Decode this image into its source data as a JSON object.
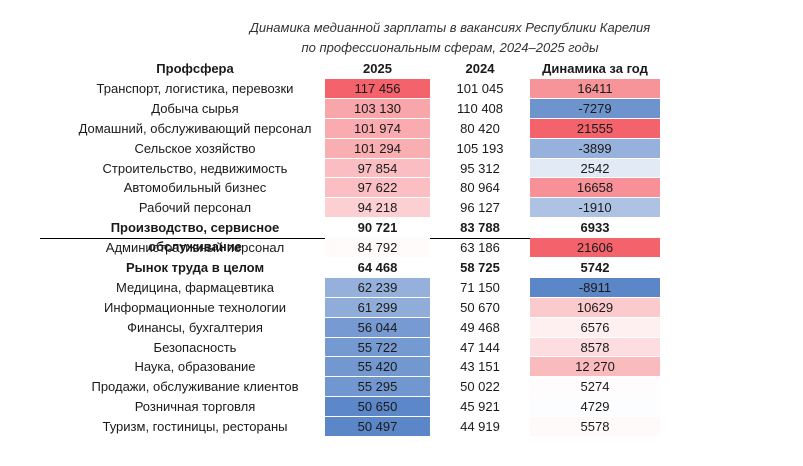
{
  "title": {
    "line1": "Динамика медианной зарплаты в вакансиях Республики Карелия",
    "line2": "по профессиональным сферам, 2024–2025 годы"
  },
  "headers": {
    "prof": "Профсфера",
    "y2025": "2025",
    "y2024": "2024",
    "dyn": "Динамика за год"
  },
  "chart_data": {
    "type": "table",
    "columns": [
      "Профсфера",
      "2025",
      "2024",
      "Динамика за год"
    ],
    "rows": [
      {
        "name": "Транспорт, логистика, перевозки",
        "v2025": "117 456",
        "v2024": "101 045",
        "dyn": "16411",
        "n2025": 117456,
        "ndyn": 16411
      },
      {
        "name": "Добыча сырья",
        "v2025": "103 130",
        "v2024": "110 408",
        "dyn": "-7279",
        "n2025": 103130,
        "ndyn": -7279
      },
      {
        "name": "Домашний, обслуживающий персонал",
        "v2025": "101 974",
        "v2024": "80 420",
        "dyn": "21555",
        "n2025": 101974,
        "ndyn": 21555
      },
      {
        "name": "Сельское хозяйство",
        "v2025": "101 294",
        "v2024": "105 193",
        "dyn": "-3899",
        "n2025": 101294,
        "ndyn": -3899
      },
      {
        "name": "Строительство, недвижимость",
        "v2025": "97 854",
        "v2024": "95 312",
        "dyn": "2542",
        "n2025": 97854,
        "ndyn": 2542
      },
      {
        "name": "Автомобильный бизнес",
        "v2025": "97 622",
        "v2024": "80 964",
        "dyn": "16658",
        "n2025": 97622,
        "ndyn": 16658
      },
      {
        "name": "Рабочий персонал",
        "v2025": "94 218",
        "v2024": "96 127",
        "dyn": "-1910",
        "n2025": 94218,
        "ndyn": -1910
      },
      {
        "name": "Производство, сервисное обслуживание",
        "v2025": "90 721",
        "v2024": "83 788",
        "dyn": "6933",
        "n2025": 90721,
        "ndyn": 6933,
        "bold": true,
        "separator": true,
        "plain": true
      },
      {
        "name": "Административный персонал",
        "v2025": "84 792",
        "v2024": "63 186",
        "dyn": "21606",
        "n2025": 84792,
        "ndyn": 21606
      },
      {
        "name": "Рынок труда в целом",
        "v2025": "64 468",
        "v2024": "58 725",
        "dyn": "5742",
        "n2025": 64468,
        "ndyn": 5742,
        "bold": true,
        "plain": true
      },
      {
        "name": "Медицина, фармацевтика",
        "v2025": "62 239",
        "v2024": "71 150",
        "dyn": "-8911",
        "n2025": 62239,
        "ndyn": -8911
      },
      {
        "name": "Информационные технологии",
        "v2025": "61 299",
        "v2024": "50 670",
        "dyn": "10629",
        "n2025": 61299,
        "ndyn": 10629
      },
      {
        "name": "Финансы, бухгалтерия",
        "v2025": "56 044",
        "v2024": "49 468",
        "dyn": "6576",
        "n2025": 56044,
        "ndyn": 6576
      },
      {
        "name": "Безопасность",
        "v2025": "55 722",
        "v2024": "47 144",
        "dyn": "8578",
        "n2025": 55722,
        "ndyn": 8578
      },
      {
        "name": "Наука, образование",
        "v2025": "55 420",
        "v2024": "43 151",
        "dyn": "12 270",
        "n2025": 55420,
        "ndyn": 12270
      },
      {
        "name": "Продажи, обслуживание клиентов",
        "v2025": "55 295",
        "v2024": "50 022",
        "dyn": "5274",
        "n2025": 55295,
        "ndyn": 5274
      },
      {
        "name": "Розничная торговля",
        "v2025": "50 650",
        "v2024": "45 921",
        "dyn": "4729",
        "n2025": 50650,
        "ndyn": 4729
      },
      {
        "name": "Туризм, гостиницы, рестораны",
        "v2025": "50 497",
        "v2024": "44 919",
        "dyn": "5578",
        "n2025": 50497,
        "ndyn": 5578
      }
    ],
    "color_scale": {
      "low": "#5b86c8",
      "mid": "#ffffff",
      "high": "#f4636b"
    }
  }
}
